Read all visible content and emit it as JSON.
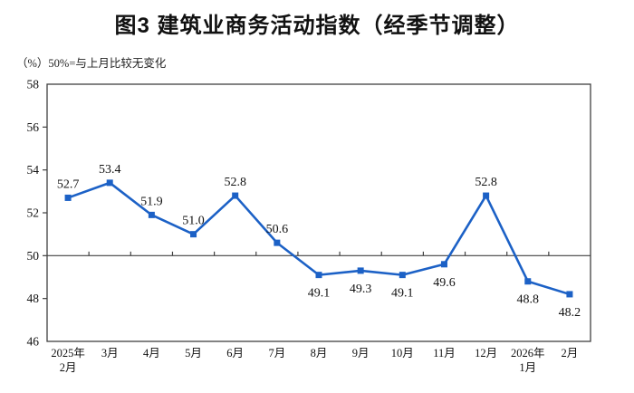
{
  "chart_data": {
    "type": "line",
    "title": "图3 建筑业商务活动指数（经季节调整）",
    "unit_note": "（%）50%=与上月比较无变化",
    "categories": [
      "2025年\n2月",
      "3月",
      "4月",
      "5月",
      "6月",
      "7月",
      "8月",
      "9月",
      "10月",
      "11月",
      "12月",
      "2026年\n1月",
      "2月"
    ],
    "values": [
      52.7,
      53.4,
      51.9,
      51.0,
      52.8,
      50.6,
      49.1,
      49.3,
      49.1,
      49.6,
      52.8,
      48.8,
      48.2
    ],
    "data_labels": [
      "52.7",
      "53.4",
      "51.9",
      "51.0",
      "52.8",
      "50.6",
      "49.1",
      "49.3",
      "49.1",
      "49.6",
      "52.8",
      "48.8",
      "48.2"
    ],
    "yticks": [
      "58",
      "56",
      "54",
      "52",
      "50",
      "48",
      "46"
    ],
    "ylim": [
      46,
      58
    ],
    "ytick_interval": 2,
    "reference_line": 50,
    "grid": false,
    "legend_position": "none",
    "colors": {
      "line": "#1C61C6",
      "marker": "#1C61C6",
      "axis": "#404040",
      "text": "#111111"
    }
  }
}
